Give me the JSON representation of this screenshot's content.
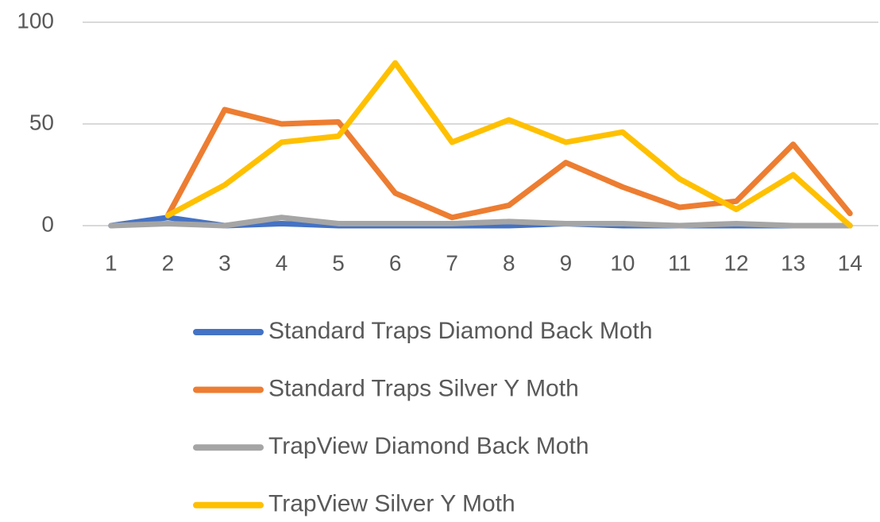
{
  "chart_data": {
    "type": "line",
    "categories": [
      "1",
      "2",
      "3",
      "4",
      "5",
      "6",
      "7",
      "8",
      "9",
      "10",
      "11",
      "12",
      "13",
      "14"
    ],
    "series": [
      {
        "name": "Standard Traps Diamond Back Moth",
        "color": "#4472c4",
        "values": [
          0,
          4,
          0,
          1,
          0,
          0,
          0,
          0,
          1,
          0,
          0,
          0,
          0,
          0
        ]
      },
      {
        "name": "Standard Traps Silver Y Moth",
        "color": "#ed7d31",
        "values": [
          null,
          5,
          57,
          50,
          51,
          16,
          4,
          10,
          31,
          19,
          9,
          12,
          40,
          6
        ]
      },
      {
        "name": "TrapView Diamond Back Moth",
        "color": "#a5a5a5",
        "values": [
          0,
          1,
          0,
          4,
          1,
          1,
          1,
          2,
          1,
          1,
          0,
          1,
          0,
          0
        ]
      },
      {
        "name": "TrapView Silver Y Moth",
        "color": "#ffc000",
        "values": [
          null,
          5,
          20,
          41,
          44,
          80,
          41,
          52,
          41,
          46,
          23,
          8,
          25,
          0
        ]
      }
    ],
    "ylim": [
      0,
      100
    ],
    "yticks": [
      0,
      50,
      100
    ],
    "grid": true,
    "legend": "bottom"
  }
}
